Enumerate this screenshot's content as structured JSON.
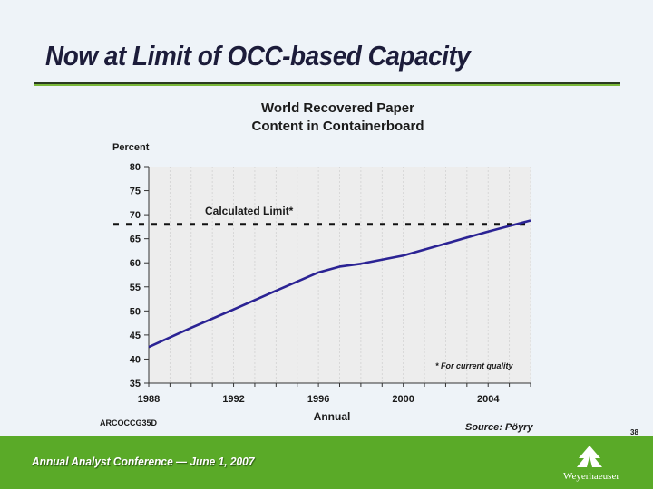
{
  "slide": {
    "title": "Now at Limit of OCC-based Capacity",
    "footer_code": "ARCOCCG35D",
    "source": "Source: Pöyry",
    "page_number": "38",
    "conference": "Annual Analyst Conference — June 1, 2007",
    "brand": "Weyerhaeuser"
  },
  "colors": {
    "series_line": "#2b2394",
    "limit_line": "#111111",
    "plot_background": "#ededed",
    "footer_green": "#5aaa28"
  },
  "chart_data": {
    "type": "line",
    "title_line1": "World Recovered Paper",
    "title_line2": "Content in Containerboard",
    "xlabel": "Annual",
    "ylabel": "Percent",
    "xlim": [
      1988,
      2006
    ],
    "ylim": [
      35,
      80
    ],
    "x_ticks": [
      1988,
      1992,
      1996,
      2000,
      2004
    ],
    "y_ticks": [
      35,
      40,
      45,
      50,
      55,
      60,
      65,
      70,
      75,
      80
    ],
    "series": [
      {
        "x": [
          1988,
          1990,
          1992,
          1994,
          1996,
          1997,
          1998,
          2000,
          2002,
          2004,
          2006
        ],
        "values": [
          42.5,
          46.5,
          50.3,
          54.2,
          58.0,
          59.2,
          59.8,
          61.5,
          64.0,
          66.5,
          68.8
        ]
      }
    ],
    "reference_line": {
      "label": "Calculated Limit*",
      "value": 68
    },
    "annotation": "* For current quality",
    "grid": "vertical"
  }
}
